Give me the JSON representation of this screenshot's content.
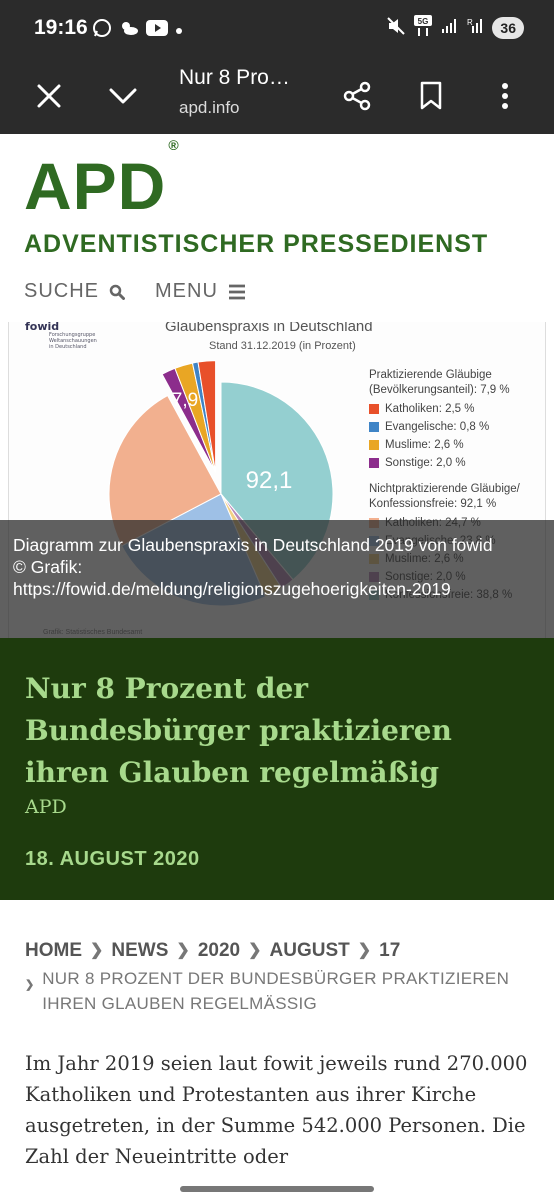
{
  "status_bar": {
    "time": "19:16",
    "battery": "36",
    "icons": [
      "whatsapp-icon",
      "weather-icon",
      "youtube-icon",
      "dot-icon",
      "mute-icon",
      "5g-icon",
      "signal-icon",
      "signal-r-icon"
    ]
  },
  "browser": {
    "page_title": "Nur 8 Pro…",
    "url": "apd.info",
    "icons": [
      "close-icon",
      "chevron-down-icon",
      "share-icon",
      "bookmark-icon",
      "more-vert-icon"
    ]
  },
  "site": {
    "logo": "APD",
    "registered": "®",
    "subtitle": "ADVENTISTISCHER PRESSEDIENST",
    "search_label": "SUCHE",
    "menu_label": "MENU"
  },
  "hero": {
    "chart_title": "Glaubenspraxis in Deutschland",
    "chart_subtitle": "Stand 31.12.2019 (in Prozent)",
    "logo_text": "fowid",
    "logo_sub": "Forschungsgruppe Weltanschauungen in Deutschland",
    "label_small": "7,9",
    "label_large": "92,1",
    "source_note": "Grafik: Statistisches Bundesamt",
    "legend_header_1": "Praktizierende Gläubige (Bevölkerungsanteil): 7,9 %",
    "legend_1": [
      {
        "label": "Katholiken:",
        "value": "2,5 %",
        "color": "#e8502a"
      },
      {
        "label": "Evangelische:",
        "value": "0,8 %",
        "color": "#3f84c6"
      },
      {
        "label": "Muslime:",
        "value": "2,6 %",
        "color": "#e9a624"
      },
      {
        "label": "Sonstige:",
        "value": "2,0 %",
        "color": "#8c2d8c"
      }
    ],
    "legend_header_2": "Nichtpraktizierende Gläubige/ Konfessionsfreie: 92,1 %",
    "legend_2": [
      {
        "label": "Katholiken:",
        "value": "24,7 %",
        "color": "#f2b08f"
      },
      {
        "label": "Evangelische:",
        "value": "23,8 %",
        "color": "#9ec0e6"
      },
      {
        "label": "Muslime:",
        "value": "2,6 %",
        "color": "#f2d084"
      },
      {
        "label": "Sonstige:",
        "value": "2,0 %",
        "color": "#b889b8"
      },
      {
        "label": "Konfessionsfreie:",
        "value": "38,8 %",
        "color": "#94cfd0"
      }
    ],
    "caption_line1": "Diagramm zur Glaubenspraxis in Deutschland 2019 von fowid",
    "caption_line2": "© Grafik:",
    "caption_line3": "https://fowid.de/meldung/religionszugehoerigkeiten-2019"
  },
  "chart_data": {
    "type": "pie",
    "title": "Glaubenspraxis in Deutschland",
    "subtitle": "Stand 31.12.2019 (in Prozent)",
    "groups": [
      {
        "name": "Praktizierende Gläubige",
        "total": 7.9,
        "slices": [
          {
            "label": "Katholiken",
            "value": 2.5
          },
          {
            "label": "Evangelische",
            "value": 0.8
          },
          {
            "label": "Muslime",
            "value": 2.6
          },
          {
            "label": "Sonstige",
            "value": 2.0
          }
        ]
      },
      {
        "name": "Nichtpraktizierende Gläubige/ Konfessionsfreie",
        "total": 92.1,
        "slices": [
          {
            "label": "Katholiken",
            "value": 24.7
          },
          {
            "label": "Evangelische",
            "value": 23.8
          },
          {
            "label": "Muslime",
            "value": 2.6
          },
          {
            "label": "Sonstige",
            "value": 2.0
          },
          {
            "label": "Konfessionsfreie",
            "value": 38.8
          }
        ]
      }
    ]
  },
  "article": {
    "title": "Nur 8 Prozent der Bundesbürger praktizieren ihren Glauben regelmäßig",
    "author": "APD",
    "date": "18. AUGUST 2020",
    "breadcrumb": [
      "HOME",
      "NEWS",
      "2020",
      "AUGUST",
      "17"
    ],
    "breadcrumb_current": "NUR 8 PROZENT DER BUNDESBÜRGER PRAKTIZIEREN IHREN GLAUBEN REGELMÄSSIG",
    "body": "Im Jahr 2019 seien laut fowit jeweils rund 270.000 Katholiken und Protestanten aus ihrer Kirche ausgetreten, in der Summe 542.000 Personen. Die Zahl der Neueintritte oder"
  }
}
